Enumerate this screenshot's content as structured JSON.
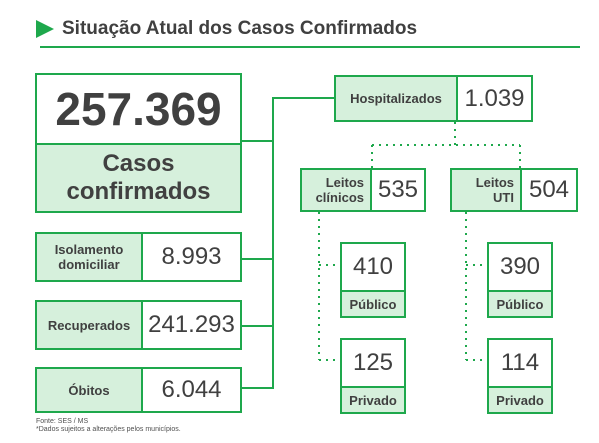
{
  "title": "Situação Atual dos Casos Confirmados",
  "total": {
    "value": "257.369",
    "label_line1": "Casos",
    "label_line2": "confirmados"
  },
  "isolamento": {
    "label_line1": "Isolamento",
    "label_line2": "domiciliar",
    "value": "8.993"
  },
  "recuperados": {
    "label": "Recuperados",
    "value": "241.293"
  },
  "obitos": {
    "label": "Óbitos",
    "value": "6.044"
  },
  "hospitalizados": {
    "label": "Hospitalizados",
    "value": "1.039"
  },
  "leitos_clinicos": {
    "label_line1": "Leitos",
    "label_line2": "clínicos",
    "value": "535",
    "publico": {
      "value": "410",
      "label": "Público"
    },
    "privado": {
      "value": "125",
      "label": "Privado"
    }
  },
  "leitos_uti": {
    "label_line1": "Leitos",
    "label_line2": "UTI",
    "value": "504",
    "publico": {
      "value": "390",
      "label": "Público"
    },
    "privado": {
      "value": "114",
      "label": "Privado"
    }
  },
  "footer": {
    "line1": "Fonte: SES / MS",
    "line2": "*Dados sujeitos a alterações pelos municípios."
  },
  "colors": {
    "accent": "#1ea84c",
    "fill": "#d6f0dc",
    "text": "#404040"
  }
}
